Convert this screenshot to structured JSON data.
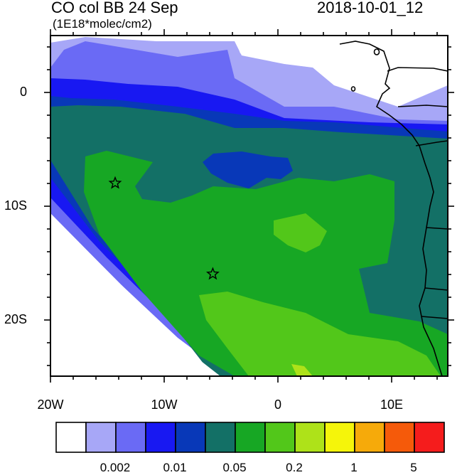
{
  "header": {
    "title": "CO col BB 24 Sep",
    "units": "(1E18*molec/cm2)",
    "datetime": "2018-10-01_12"
  },
  "map": {
    "latitude_labels": [
      "0",
      "10S",
      "20S"
    ],
    "longitude_labels": [
      "20W",
      "10W",
      "0",
      "10E"
    ],
    "markers": [
      {
        "name": "star",
        "lon": -14.3,
        "lat": -8.0
      },
      {
        "name": "star",
        "lon": -5.7,
        "lat": -16.0
      }
    ],
    "extent": {
      "lon": [
        -20,
        15
      ],
      "lat": [
        -25,
        5
      ]
    }
  },
  "colorbar": {
    "colors": [
      "#ffffff",
      "#a7a7f7",
      "#6a6af5",
      "#1818f2",
      "#0838b8",
      "#137066",
      "#17a724",
      "#52c71a",
      "#aee219",
      "#f5f50a",
      "#f6aa0a",
      "#f55a0a",
      "#f51c1c"
    ],
    "labels": [
      "0.002",
      "0.01",
      "0.05",
      "0.2",
      "1",
      "5"
    ]
  }
}
